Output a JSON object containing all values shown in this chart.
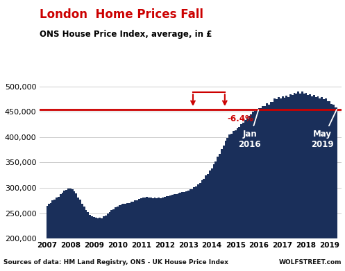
{
  "title": "London  Home Prices Fall",
  "subtitle": "ONS House Price Index, average, in £",
  "footer": "Sources of data: HM Land Registry, ONS - UK House Price Index",
  "footer_right": "WOLFSTREET.com",
  "fill_color": "#1a2f5a",
  "reference_line_y": 455000,
  "reference_line_color": "#cc0000",
  "ylim": [
    200000,
    510000
  ],
  "yticks": [
    200000,
    250000,
    300000,
    350000,
    400000,
    450000,
    500000
  ],
  "title_color": "#cc0000",
  "subtitle_color": "#000000",
  "annotation_pct": "-6.4%",
  "annotation_pct_color": "#cc0000",
  "xlim_left": 2006.7,
  "xlim_right": 2019.5,
  "data_years": [
    2007.0,
    2007.083,
    2007.167,
    2007.25,
    2007.333,
    2007.417,
    2007.5,
    2007.583,
    2007.667,
    2007.75,
    2007.833,
    2007.917,
    2008.0,
    2008.083,
    2008.167,
    2008.25,
    2008.333,
    2008.417,
    2008.5,
    2008.583,
    2008.667,
    2008.75,
    2008.833,
    2008.917,
    2009.0,
    2009.083,
    2009.167,
    2009.25,
    2009.333,
    2009.417,
    2009.5,
    2009.583,
    2009.667,
    2009.75,
    2009.833,
    2009.917,
    2010.0,
    2010.083,
    2010.167,
    2010.25,
    2010.333,
    2010.417,
    2010.5,
    2010.583,
    2010.667,
    2010.75,
    2010.833,
    2010.917,
    2011.0,
    2011.083,
    2011.167,
    2011.25,
    2011.333,
    2011.417,
    2011.5,
    2011.583,
    2011.667,
    2011.75,
    2011.833,
    2011.917,
    2012.0,
    2012.083,
    2012.167,
    2012.25,
    2012.333,
    2012.417,
    2012.5,
    2012.583,
    2012.667,
    2012.75,
    2012.833,
    2012.917,
    2013.0,
    2013.083,
    2013.167,
    2013.25,
    2013.333,
    2013.417,
    2013.5,
    2013.583,
    2013.667,
    2013.75,
    2013.833,
    2013.917,
    2014.0,
    2014.083,
    2014.167,
    2014.25,
    2014.333,
    2014.417,
    2014.5,
    2014.583,
    2014.667,
    2014.75,
    2014.833,
    2014.917,
    2015.0,
    2015.083,
    2015.167,
    2015.25,
    2015.333,
    2015.417,
    2015.5,
    2015.583,
    2015.667,
    2015.75,
    2015.833,
    2015.917,
    2016.0,
    2016.083,
    2016.167,
    2016.25,
    2016.333,
    2016.417,
    2016.5,
    2016.583,
    2016.667,
    2016.75,
    2016.833,
    2016.917,
    2017.0,
    2017.083,
    2017.167,
    2017.25,
    2017.333,
    2017.417,
    2017.5,
    2017.583,
    2017.667,
    2017.75,
    2017.833,
    2017.917,
    2018.0,
    2018.083,
    2018.167,
    2018.25,
    2018.333,
    2018.417,
    2018.5,
    2018.583,
    2018.667,
    2018.75,
    2018.833,
    2018.917,
    2019.0,
    2019.083,
    2019.167,
    2019.25,
    2019.333
  ],
  "data_values": [
    265000,
    268000,
    271000,
    274000,
    277000,
    280000,
    283000,
    287000,
    291000,
    294000,
    296000,
    298000,
    299000,
    297000,
    293000,
    288000,
    282000,
    276000,
    269000,
    262000,
    256000,
    251000,
    247000,
    244000,
    242000,
    241000,
    240000,
    240000,
    241000,
    243000,
    246000,
    249000,
    252000,
    255000,
    258000,
    261000,
    263000,
    265000,
    267000,
    268000,
    269000,
    270000,
    271000,
    272000,
    273000,
    274000,
    276000,
    278000,
    279000,
    280000,
    281000,
    281000,
    281000,
    281000,
    280000,
    280000,
    280000,
    280000,
    280000,
    281000,
    282000,
    283000,
    284000,
    285000,
    286000,
    287000,
    288000,
    289000,
    290000,
    291000,
    292000,
    293000,
    294000,
    296000,
    298000,
    300000,
    303000,
    306000,
    310000,
    314000,
    318000,
    323000,
    328000,
    333000,
    338000,
    345000,
    352000,
    360000,
    368000,
    376000,
    384000,
    392000,
    399000,
    404000,
    408000,
    411000,
    414000,
    417000,
    421000,
    425000,
    429000,
    433000,
    437000,
    441000,
    446000,
    449000,
    452000,
    454000,
    456000,
    458000,
    460000,
    462000,
    464000,
    466000,
    468000,
    471000,
    474000,
    476000,
    477000,
    478000,
    478000,
    479000,
    480000,
    481000,
    483000,
    484000,
    485000,
    487000,
    488000,
    488000,
    488000,
    487000,
    486000,
    484000,
    483000,
    482000,
    481000,
    480000,
    479000,
    478000,
    477000,
    476000,
    474000,
    472000,
    469000,
    466000,
    463000,
    460000,
    457000
  ],
  "jagged_noise": [
    0,
    1000,
    -500,
    800,
    -1000,
    500,
    -800,
    1200,
    -600,
    900,
    -700,
    400,
    0,
    800,
    -600,
    1000,
    -800,
    600,
    -1000,
    700,
    -500,
    900,
    -700,
    300,
    0,
    500,
    -400,
    700,
    -600,
    400,
    -800,
    600,
    -500,
    800,
    -600,
    300,
    0,
    400,
    -300,
    600,
    -500,
    300,
    -600,
    500,
    -400,
    700,
    -500,
    200,
    0,
    300,
    -200,
    500,
    -400,
    200,
    -500,
    400,
    -300,
    600,
    -400,
    100,
    0,
    200,
    -100,
    400,
    -300,
    100,
    -400,
    300,
    -200,
    500,
    -300,
    0,
    0,
    500,
    -300,
    800,
    -600,
    400,
    -800,
    1000,
    -500,
    900,
    -700,
    600,
    0,
    1000,
    -700,
    1200,
    -900,
    700,
    -1000,
    1300,
    -800,
    1100,
    -900,
    700,
    0,
    800,
    -600,
    1000,
    -800,
    600,
    -1000,
    900,
    -700,
    1200,
    -900,
    700,
    1500,
    -1000,
    1800,
    -1200,
    2000,
    -1500,
    1800,
    -1200,
    2200,
    -1500,
    1900,
    -1300,
    2000,
    -1400,
    2200,
    -1600,
    2000,
    -1400,
    2200,
    -1600,
    2400,
    -1700,
    2200,
    -1500,
    1800,
    -1200,
    2000,
    -1500,
    1800,
    -1200,
    2000,
    -1500,
    1800,
    -1200,
    1600,
    -1000,
    1500,
    -1000,
    1400,
    -900,
    1300
  ]
}
